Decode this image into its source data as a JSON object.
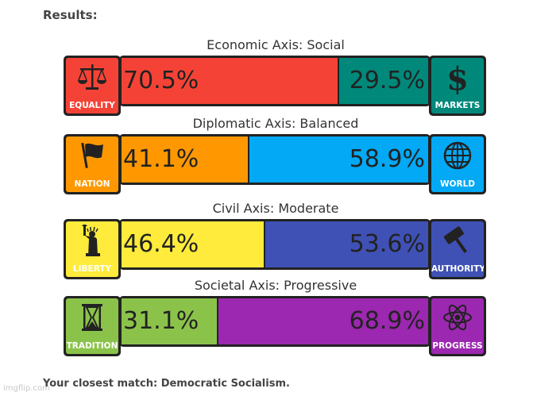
{
  "header": {
    "title": "Results:"
  },
  "axes": [
    {
      "title": "Economic Axis: Social",
      "left": {
        "label": "EQUALITY",
        "icon": "scales-icon",
        "percent": "70.5%",
        "value": 70.5,
        "color": "#f44336"
      },
      "right": {
        "label": "MARKETS",
        "icon": "dollar-icon",
        "percent": "29.5%",
        "value": 29.5,
        "color": "#00897b"
      }
    },
    {
      "title": "Diplomatic Axis: Balanced",
      "left": {
        "label": "NATION",
        "icon": "flag-icon",
        "percent": "41.1%",
        "value": 41.1,
        "color": "#ff9800"
      },
      "right": {
        "label": "WORLD",
        "icon": "globe-icon",
        "percent": "58.9%",
        "value": 58.9,
        "color": "#03a9f4"
      }
    },
    {
      "title": "Civil Axis: Moderate",
      "left": {
        "label": "LIBERTY",
        "icon": "statue-of-liberty-icon",
        "percent": "46.4%",
        "value": 46.4,
        "color": "#ffeb3b"
      },
      "right": {
        "label": "AUTHORITY",
        "icon": "gavel-icon",
        "percent": "53.6%",
        "value": 53.6,
        "color": "#3f51b5"
      }
    },
    {
      "title": "Societal Axis: Progressive",
      "left": {
        "label": "TRADITION",
        "icon": "hourglass-icon",
        "percent": "31.1%",
        "value": 31.1,
        "color": "#8bc34a"
      },
      "right": {
        "label": "PROGRESS",
        "icon": "atom-icon",
        "percent": "68.9%",
        "value": 68.9,
        "color": "#9c27b0"
      }
    }
  ],
  "footer": {
    "closest_match": "Your closest match: Democratic Socialism."
  },
  "watermark": "imgflip.com"
}
